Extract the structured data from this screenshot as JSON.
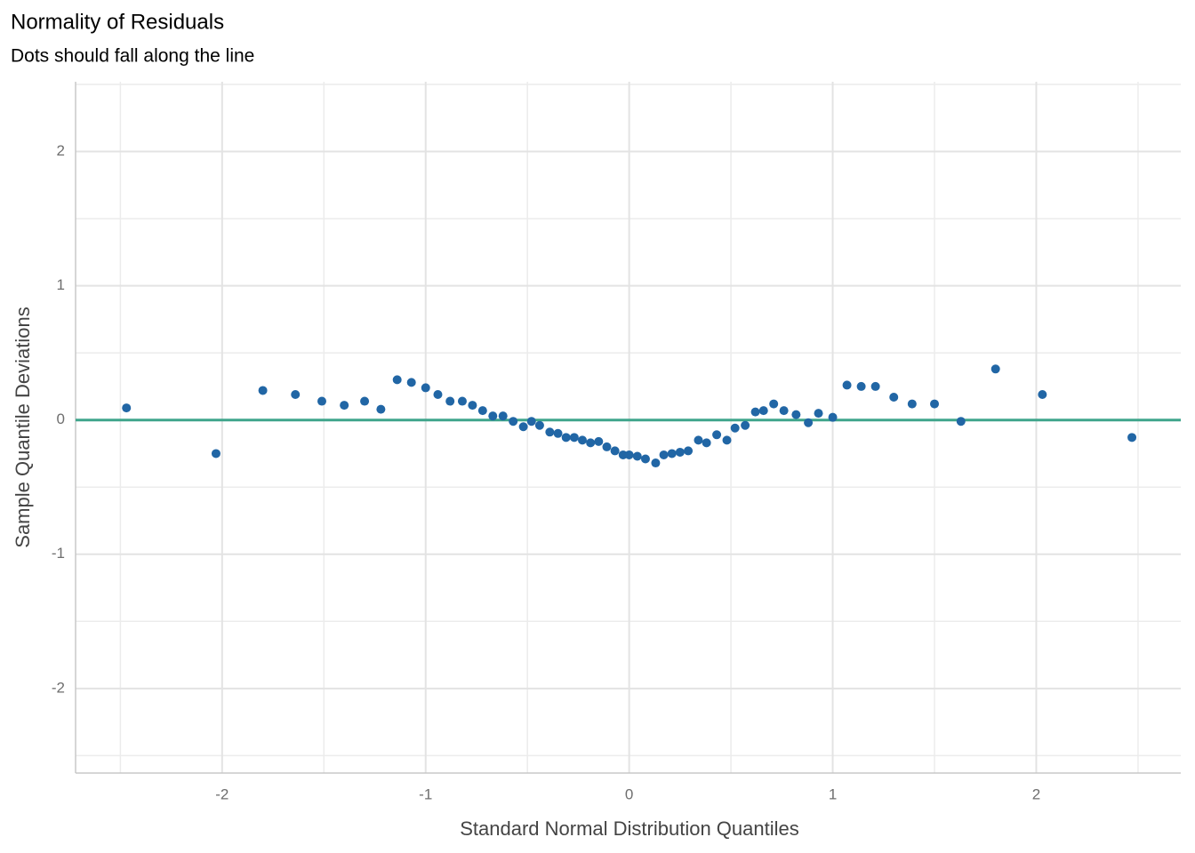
{
  "chart_data": {
    "type": "scatter",
    "title": "Normality of Residuals",
    "subtitle": "Dots should fall along the line",
    "x_label": "Standard Normal Distribution Quantiles",
    "y_label": "Sample Quantile Deviations",
    "color": "#2166a5",
    "hline": 0,
    "hline_color": "#3fa58b",
    "grid": true,
    "xlim": [
      -2.72,
      2.71
    ],
    "ylim": [
      -2.63,
      2.52
    ],
    "xticks": [
      -2,
      -1,
      0,
      1,
      2
    ],
    "yticks": [
      -2,
      -1,
      0,
      1,
      2
    ],
    "x": [
      -2.47,
      -2.03,
      -1.8,
      -1.64,
      -1.51,
      -1.4,
      -1.3,
      -1.22,
      -1.14,
      -1.07,
      -1.0,
      -0.94,
      -0.88,
      -0.82,
      -0.77,
      -0.72,
      -0.67,
      -0.62,
      -0.57,
      -0.52,
      -0.48,
      -0.44,
      -0.39,
      -0.35,
      -0.31,
      -0.27,
      -0.23,
      -0.19,
      -0.15,
      -0.11,
      -0.07,
      -0.03,
      0.0,
      0.04,
      0.08,
      0.13,
      0.17,
      0.21,
      0.25,
      0.29,
      0.34,
      0.38,
      0.43,
      0.48,
      0.52,
      0.57,
      0.62,
      0.66,
      0.71,
      0.76,
      0.82,
      0.88,
      0.93,
      1.0,
      1.07,
      1.14,
      1.21,
      1.3,
      1.39,
      1.5,
      1.63,
      1.8,
      2.03,
      2.47
    ],
    "values": [
      0.09,
      -0.25,
      0.22,
      0.19,
      0.14,
      0.11,
      0.14,
      0.08,
      0.3,
      0.28,
      0.24,
      0.19,
      0.14,
      0.14,
      0.11,
      0.07,
      0.03,
      0.03,
      -0.01,
      -0.05,
      -0.01,
      -0.04,
      -0.09,
      -0.1,
      -0.13,
      -0.13,
      -0.15,
      -0.17,
      -0.16,
      -0.2,
      -0.23,
      -0.26,
      -0.26,
      -0.27,
      -0.29,
      -0.32,
      -0.26,
      -0.25,
      -0.24,
      -0.23,
      -0.15,
      -0.17,
      -0.11,
      -0.15,
      -0.06,
      -0.04,
      0.06,
      0.07,
      0.12,
      0.07,
      0.04,
      -0.02,
      0.05,
      0.02,
      0.26,
      0.25,
      0.25,
      0.17,
      0.12,
      0.12,
      -0.01,
      0.38,
      0.19,
      -0.13
    ]
  }
}
